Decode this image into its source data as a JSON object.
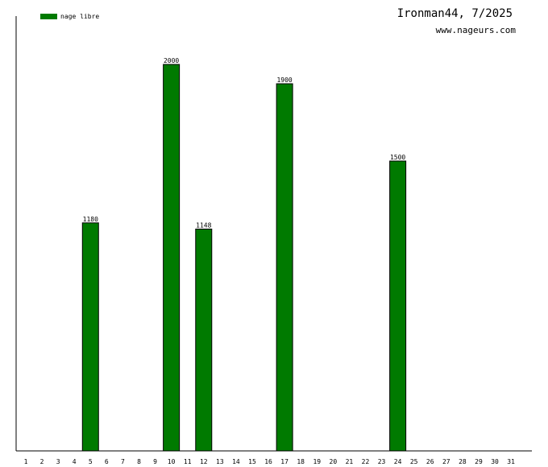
{
  "header": {
    "title": "Ironman44, 7/2025",
    "site": "www.nageurs.com"
  },
  "legend": {
    "label": "nage libre",
    "color": "#007a00"
  },
  "chart_data": {
    "type": "bar",
    "categories": [
      "1",
      "2",
      "3",
      "4",
      "5",
      "6",
      "7",
      "8",
      "9",
      "10",
      "11",
      "12",
      "13",
      "14",
      "15",
      "16",
      "17",
      "18",
      "19",
      "20",
      "21",
      "22",
      "23",
      "24",
      "25",
      "26",
      "27",
      "28",
      "29",
      "30",
      "31"
    ],
    "series": [
      {
        "name": "nage libre",
        "color": "#007a00",
        "values": [
          null,
          null,
          null,
          null,
          1180,
          null,
          null,
          null,
          null,
          2000,
          null,
          1148,
          null,
          null,
          null,
          null,
          1900,
          null,
          null,
          null,
          null,
          null,
          null,
          1500,
          null,
          null,
          null,
          null,
          null,
          null,
          null
        ]
      }
    ],
    "ylim": [
      0,
      2250
    ],
    "grid": false,
    "legend_position": "top-left"
  }
}
